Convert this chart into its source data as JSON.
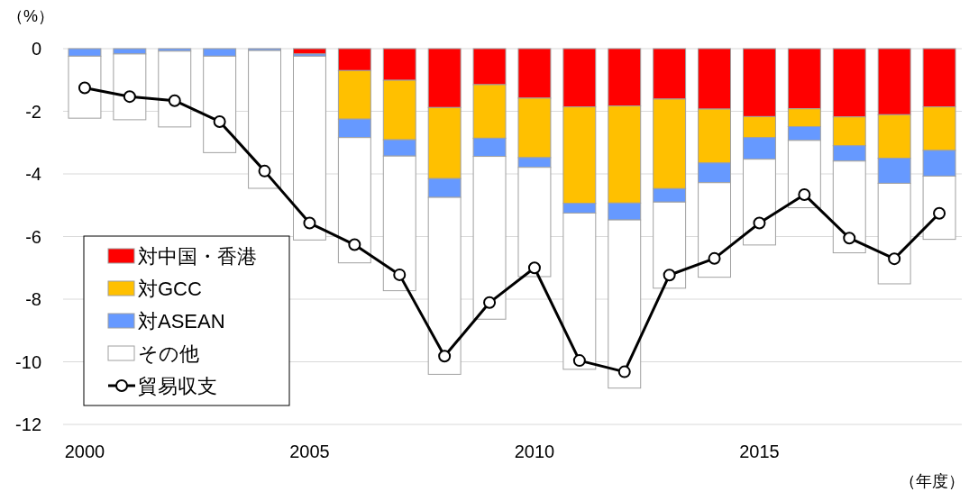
{
  "chart_data": {
    "type": "bar",
    "stacked": true,
    "ylabel": "（%）",
    "xlabel": "（年度）",
    "x": [
      2000,
      2001,
      2002,
      2003,
      2004,
      2005,
      2006,
      2007,
      2008,
      2009,
      2010,
      2011,
      2012,
      2013,
      2014,
      2015,
      2016,
      2017,
      2018,
      2019
    ],
    "xlim": [
      1999.52,
      2019.5
    ],
    "xticks": [
      2000,
      2005,
      2010,
      2015
    ],
    "ylim": [
      -12,
      0
    ],
    "yticks": [
      0,
      -2,
      -4,
      -6,
      -8,
      -10,
      -12
    ],
    "grid": "y",
    "legend": "bottom left",
    "marker": "circle",
    "series": [
      {
        "name": "対中国・香港",
        "color": "#ff0000",
        "values": [
          0,
          0,
          0,
          0,
          0,
          -0.17,
          -0.7,
          -1.01,
          -1.88,
          -1.15,
          -1.58,
          -1.86,
          -1.83,
          -1.61,
          -1.93,
          -2.17,
          -1.92,
          -2.18,
          -2.11,
          -1.86
        ]
      },
      {
        "name": "対GCC",
        "color": "#ffc000",
        "values": [
          0,
          0,
          0,
          0,
          0,
          0,
          -1.55,
          -1.9,
          -2.27,
          -1.71,
          -1.9,
          -3.08,
          -3.1,
          -2.86,
          -1.72,
          -0.67,
          -0.57,
          -0.92,
          -1.39,
          -1.39
        ]
      },
      {
        "name": "対ASEAN",
        "color": "#6699ff",
        "values": [
          -0.24,
          -0.17,
          -0.08,
          -0.24,
          -0.06,
          -0.07,
          -0.59,
          -0.52,
          -0.6,
          -0.58,
          -0.31,
          -0.31,
          -0.54,
          -0.43,
          -0.63,
          -0.69,
          -0.44,
          -0.49,
          -0.8,
          -0.82
        ]
      },
      {
        "name": "その他",
        "color": "#ffffff",
        "values": [
          -1.98,
          -2.1,
          -2.42,
          -3.08,
          -4.4,
          -5.87,
          -4.0,
          -4.3,
          -5.65,
          -5.2,
          -3.49,
          -4.99,
          -5.37,
          -2.75,
          -3.02,
          -2.74,
          -2.15,
          -2.93,
          -3.21,
          -2.02
        ]
      },
      {
        "name": "貿易収支",
        "type": "line",
        "color": "#000000",
        "values": [
          -1.25,
          -1.53,
          -1.66,
          -2.33,
          -3.91,
          -5.57,
          -6.26,
          -7.22,
          -9.82,
          -8.11,
          -7.0,
          -9.96,
          -10.32,
          -7.23,
          -6.7,
          -5.57,
          -4.66,
          -6.05,
          -6.71,
          -5.26
        ]
      }
    ]
  }
}
